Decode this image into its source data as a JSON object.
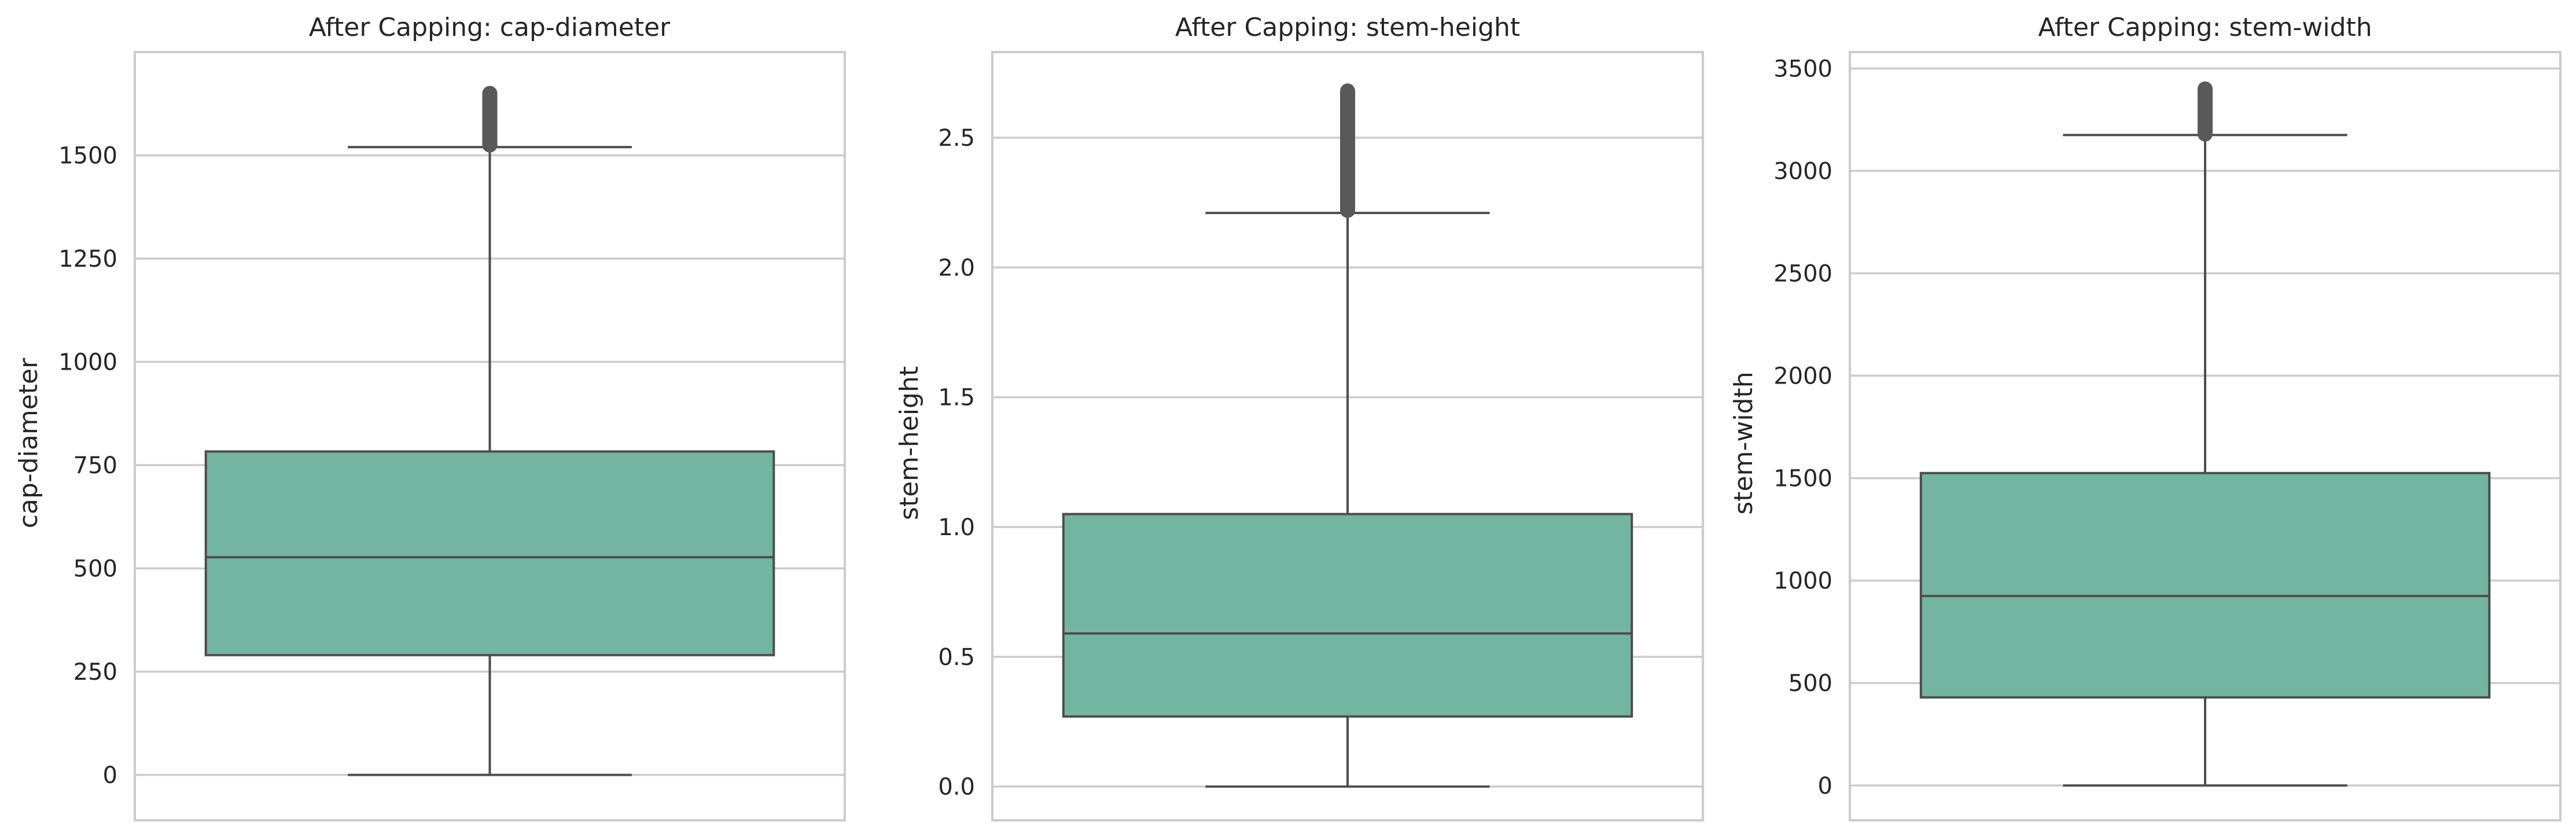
{
  "chart_data": [
    {
      "type": "boxplot",
      "title": "After Capping: cap-diameter",
      "ylabel": "cap-diameter",
      "xlabel": "",
      "ylim": [
        -110,
        1750
      ],
      "yticks": [
        0,
        250,
        500,
        750,
        1000,
        1250,
        1500
      ],
      "ytick_labels": [
        "0",
        "250",
        "500",
        "750",
        "1000",
        "1250",
        "1500"
      ],
      "grid": true,
      "box_color": "#73b5a0",
      "box": {
        "min": 0,
        "q1": 290,
        "median": 527,
        "q3": 783,
        "max": 1520
      },
      "outliers": {
        "from": 1525,
        "to": 1650
      }
    },
    {
      "type": "boxplot",
      "title": "After Capping: stem-height",
      "ylabel": "stem-height",
      "xlabel": "",
      "ylim": [
        -0.13,
        2.83
      ],
      "yticks": [
        0.0,
        0.5,
        1.0,
        1.5,
        2.0,
        2.5
      ],
      "ytick_labels": [
        "0.0",
        "0.5",
        "1.0",
        "1.5",
        "2.0",
        "2.5"
      ],
      "grid": true,
      "box_color": "#73b5a0",
      "box": {
        "min": 0.0,
        "q1": 0.27,
        "median": 0.59,
        "q3": 1.05,
        "max": 2.21
      },
      "outliers": {
        "from": 2.22,
        "to": 2.68
      }
    },
    {
      "type": "boxplot",
      "title": "After Capping: stem-width",
      "ylabel": "stem-width",
      "xlabel": "",
      "ylim": [
        -170,
        3580
      ],
      "yticks": [
        0,
        500,
        1000,
        1500,
        2000,
        2500,
        3000,
        3500
      ],
      "ytick_labels": [
        "0",
        "500",
        "1000",
        "1500",
        "2000",
        "2500",
        "3000",
        "3500"
      ],
      "grid": true,
      "box_color": "#73b5a0",
      "box": {
        "min": 0,
        "q1": 430,
        "median": 925,
        "q3": 1525,
        "max": 3175
      },
      "outliers": {
        "from": 3180,
        "to": 3400
      }
    }
  ]
}
